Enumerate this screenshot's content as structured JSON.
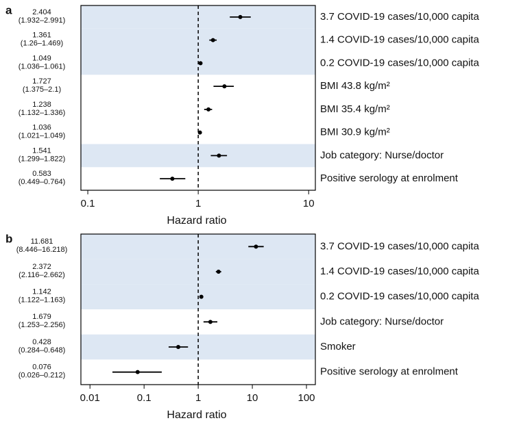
{
  "chart_data": [
    {
      "type": "forest",
      "panel_label": "a",
      "xlabel": "Hazard ratio",
      "xscale": "log",
      "xlim": [
        0.0866,
        11.5
      ],
      "xticks": [
        0.1,
        1,
        10
      ],
      "reference_line": 1,
      "color": "#000000",
      "shade_color": "#dde7f3",
      "categories": [
        "3.7 COVID-19 cases/10,000 capita",
        "1.4 COVID-19 cases/10,000 capita",
        "0.2 COVID-19 cases/10,000 capita",
        "BMI 43.8 kg/m²",
        "BMI 35.4 kg/m²",
        "BMI 30.9 kg/m²",
        "Job category: Nurse/doctor",
        "Positive serology at enrolment"
      ],
      "values": [
        2.404,
        1.361,
        1.049,
        1.727,
        1.238,
        1.036,
        1.541,
        0.583
      ],
      "lower": [
        1.932,
        1.26,
        1.036,
        1.375,
        1.132,
        1.021,
        1.299,
        0.449
      ],
      "upper": [
        2.991,
        1.469,
        1.061,
        2.1,
        1.336,
        1.049,
        1.822,
        0.764
      ],
      "ci_labels": [
        "(1.932–2.991)",
        "(1.26–1.469)",
        "(1.036–1.061)",
        "(1.375–2.1)",
        "(1.132–1.336)",
        "(1.021–1.049)",
        "(1.299–1.822)",
        "(0.449–0.764)"
      ],
      "shaded": [
        true,
        true,
        true,
        false,
        false,
        false,
        true,
        false
      ]
    },
    {
      "type": "forest",
      "panel_label": "b",
      "xlabel": "Hazard ratio",
      "xscale": "log",
      "xlim": [
        0.0068,
        146
      ],
      "xticks": [
        0.01,
        0.1,
        1,
        10,
        100
      ],
      "reference_line": 1,
      "color": "#000000",
      "shade_color": "#dde7f3",
      "categories": [
        "3.7 COVID-19 cases/10,000 capita",
        "1.4 COVID-19 cases/10,000 capita",
        "0.2 COVID-19 cases/10,000 capita",
        "Job category: Nurse/doctor",
        "Smoker",
        "Positive serology at enrolment"
      ],
      "values": [
        11.681,
        2.372,
        1.142,
        1.679,
        0.428,
        0.076
      ],
      "lower": [
        8.446,
        2.116,
        1.122,
        1.253,
        0.284,
        0.026
      ],
      "upper": [
        16.218,
        2.662,
        1.163,
        2.256,
        0.648,
        0.212
      ],
      "ci_labels": [
        "(8.446–16.218)",
        "(2.116–2.662)",
        "(1.122–1.163)",
        "(1.253–2.256)",
        "(0.284–0.648)",
        "(0.026–0.212)"
      ],
      "shaded": [
        true,
        true,
        true,
        false,
        true,
        false
      ]
    }
  ]
}
